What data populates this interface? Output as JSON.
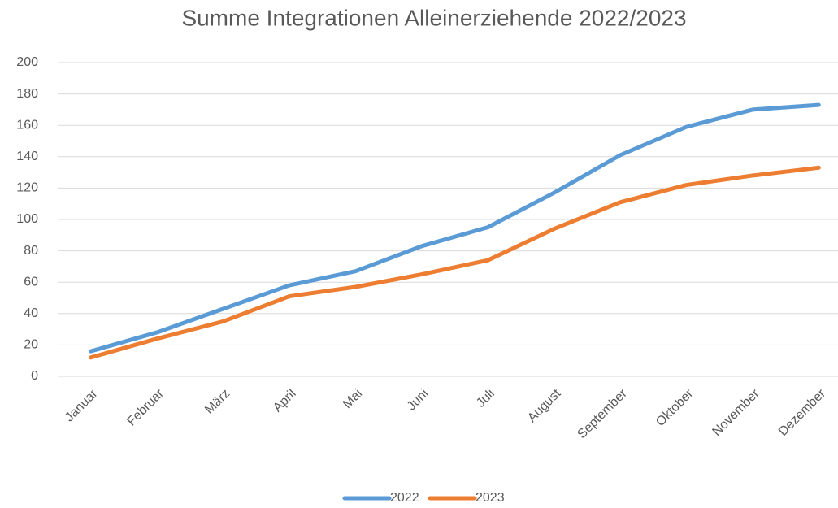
{
  "chart_data": {
    "type": "line",
    "title": "Summe Integrationen Alleinerziehende 2022/2023",
    "categories": [
      "Januar",
      "Februar",
      "März",
      "April",
      "Mai",
      "Juni",
      "Juli",
      "August",
      "September",
      "Oktober",
      "November",
      "Dezember"
    ],
    "series": [
      {
        "name": "2022",
        "color": "#5b9bd5",
        "values": [
          16,
          28,
          43,
          58,
          67,
          83,
          95,
          117,
          141,
          159,
          170,
          173
        ]
      },
      {
        "name": "2023",
        "color": "#ed7d31",
        "values": [
          12,
          24,
          35,
          51,
          57,
          65,
          74,
          94,
          111,
          122,
          128,
          133
        ]
      }
    ],
    "ylim": [
      0,
      200
    ],
    "yticks": [
      0,
      20,
      40,
      60,
      80,
      100,
      120,
      140,
      160,
      180,
      200
    ],
    "grid": true,
    "legend": "bottom"
  }
}
